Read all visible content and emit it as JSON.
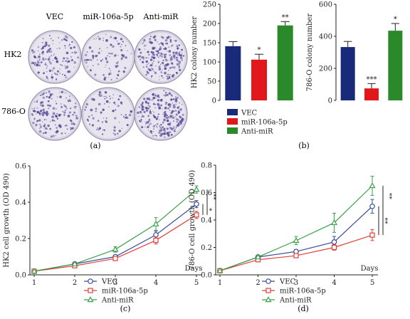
{
  "colony_panel": {
    "col_labels": [
      "VEC",
      "miR-106a-5p",
      "Anti-miR"
    ],
    "row_labels": [
      "HK2",
      "786-O"
    ],
    "caption": "(a)"
  },
  "panel_b": {
    "caption": "(b)"
  },
  "panel_c": {
    "caption": "(c)"
  },
  "panel_d": {
    "caption": "(d)"
  },
  "colors": {
    "VEC": "#1a2a7a",
    "miR": "#e0171b",
    "Anti": "#2a8a2a",
    "line_vec": "#3a4a9c",
    "line_mir": "#e0403a",
    "line_anti": "#3aa04a",
    "colony_dish": "#e9e5ee",
    "colony_stain": "#5a4a9a"
  },
  "chart_data": [
    {
      "type": "bar",
      "categories": [
        "VEC",
        "miR-106a-5p",
        "Anti-miR"
      ],
      "values": [
        141,
        106,
        195
      ],
      "errors": [
        12,
        14,
        10
      ],
      "significance": [
        "",
        "*",
        "**"
      ],
      "ylabel": "HK2 colony number",
      "ylim": [
        0,
        250
      ],
      "yticks": [
        0,
        50,
        100,
        150,
        200,
        250
      ]
    },
    {
      "type": "bar",
      "categories": [
        "VEC",
        "miR-106a-5p",
        "Anti-miR"
      ],
      "values": [
        333,
        75,
        435
      ],
      "errors": [
        35,
        30,
        45
      ],
      "significance": [
        "",
        "***",
        "*"
      ],
      "ylabel": "786-O colony number",
      "ylim": [
        0,
        600
      ],
      "yticks": [
        0,
        200,
        400,
        600
      ]
    },
    {
      "type": "line",
      "x": [
        1,
        2,
        3,
        4,
        5
      ],
      "xlabel": "Days",
      "ylabel": "HK2 cell growth (OD 490)",
      "ylim": [
        0,
        0.6
      ],
      "yticks": [
        0.0,
        0.2,
        0.4,
        0.6
      ],
      "series": [
        {
          "name": "VEC",
          "values": [
            0.02,
            0.06,
            0.1,
            0.22,
            0.39
          ],
          "errors": [
            0.005,
            0.005,
            0.01,
            0.02,
            0.02
          ]
        },
        {
          "name": "miR-106a-5p",
          "values": [
            0.02,
            0.05,
            0.09,
            0.19,
            0.33
          ],
          "errors": [
            0.005,
            0.005,
            0.01,
            0.02,
            0.02
          ]
        },
        {
          "name": "Anti-miR",
          "values": [
            0.02,
            0.06,
            0.14,
            0.28,
            0.47
          ],
          "errors": [
            0.005,
            0.005,
            0.015,
            0.035,
            0.02
          ]
        }
      ],
      "significance": [
        "**",
        "*"
      ],
      "legend": [
        "VEC",
        "miR-106a-5p",
        "Anti-miR"
      ]
    },
    {
      "type": "line",
      "x": [
        1,
        2,
        3,
        4,
        5
      ],
      "xlabel": "Days",
      "ylabel": "786-O cell growth (OD 490)",
      "ylim": [
        0,
        0.8
      ],
      "yticks": [
        0.0,
        0.2,
        0.4,
        0.6,
        0.8
      ],
      "series": [
        {
          "name": "VEC",
          "values": [
            0.03,
            0.13,
            0.17,
            0.24,
            0.5
          ],
          "errors": [
            0.005,
            0.01,
            0.015,
            0.04,
            0.05
          ]
        },
        {
          "name": "miR-106a-5p",
          "values": [
            0.03,
            0.11,
            0.14,
            0.2,
            0.29
          ],
          "errors": [
            0.005,
            0.01,
            0.01,
            0.02,
            0.04
          ]
        },
        {
          "name": "Anti-miR",
          "values": [
            0.03,
            0.13,
            0.25,
            0.38,
            0.65
          ],
          "errors": [
            0.005,
            0.01,
            0.03,
            0.07,
            0.07
          ]
        }
      ],
      "significance": [
        "**",
        "**"
      ],
      "legend": [
        "VEC",
        "miR-106a-5p",
        "Anti-miR"
      ]
    }
  ]
}
